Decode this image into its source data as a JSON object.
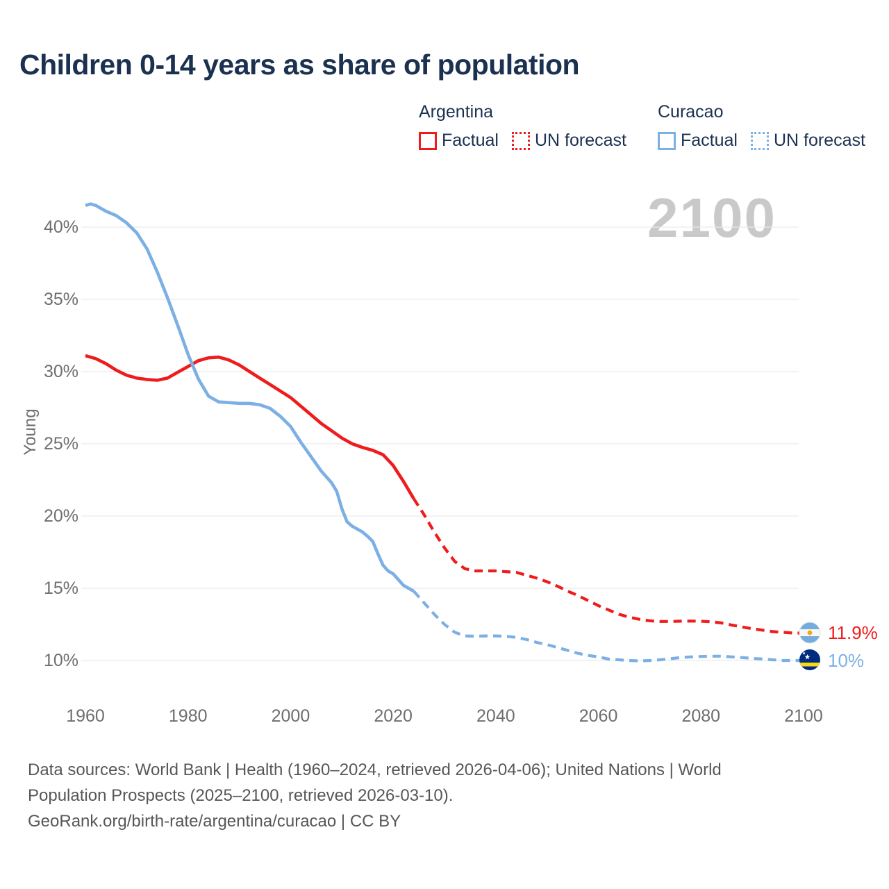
{
  "title": "Children 0-14 years as share of population",
  "watermark": "2100",
  "colors": {
    "argentina_line": "#ee1c1c",
    "curacao_line": "#7cb0e4",
    "heading_navy": "#1b3150",
    "axis_gray": "#6e6e6e",
    "gridline": "#e9e9e9",
    "watermark_gray": "#c9c9c9",
    "footer_gray": "#575757"
  },
  "legend": {
    "groups": [
      {
        "name": "Argentina",
        "items": [
          {
            "label": "Factual",
            "style": "solid",
            "color": "#ee1c1c"
          },
          {
            "label": "UN forecast",
            "style": "dotted",
            "color": "#ee1c1c"
          }
        ]
      },
      {
        "name": "Curacao",
        "items": [
          {
            "label": "Factual",
            "style": "solid",
            "color": "#7cb0e4"
          },
          {
            "label": "UN forecast",
            "style": "dotted",
            "color": "#7cb0e4"
          }
        ]
      }
    ]
  },
  "end_labels": [
    {
      "series": "Argentina",
      "value": "11.9%",
      "color": "#ee1c1c",
      "flag": "argentina-flag"
    },
    {
      "series": "Curacao",
      "value": "10%",
      "color": "#7cb0e4",
      "flag": "curacao-flag"
    }
  ],
  "footer": {
    "lines": [
      "Data sources: World Bank | Health (1960–2024, retrieved 2026-04-06); United Nations | World",
      "Population Prospects (2025–2100, retrieved 2026-03-10).",
      "GeoRank.org/birth-rate/argentina/curacao | CC BY"
    ]
  },
  "chart_data": {
    "type": "line",
    "title": "Children 0-14 years as share of population",
    "xlabel": "",
    "ylabel": "Young",
    "x_axis": {
      "tick_values": [
        1960,
        1980,
        2000,
        2020,
        2040,
        2060,
        2080,
        2100
      ],
      "tick_labels": [
        "1960",
        "1980",
        "2000",
        "2020",
        "2040",
        "2060",
        "2080",
        "2100"
      ],
      "range": [
        1960,
        2100
      ]
    },
    "y_axis": {
      "title": "Young",
      "tick_values": [
        40,
        35,
        30,
        25,
        20,
        15,
        10
      ],
      "tick_labels": [
        "40%",
        "35%",
        "30%",
        "25%",
        "20%",
        "15%",
        "10%"
      ],
      "range_pct": [
        10,
        40
      ],
      "grid": true
    },
    "legend_position": "top-right",
    "series": [
      {
        "name": "Argentina Factual",
        "country": "Argentina",
        "kind": "factual",
        "style": "solid",
        "color": "#ee1c1c",
        "points": [
          [
            1960,
            31.1
          ],
          [
            1962,
            30.9
          ],
          [
            1964,
            30.55
          ],
          [
            1966,
            30.1
          ],
          [
            1968,
            29.75
          ],
          [
            1970,
            29.55
          ],
          [
            1972,
            29.45
          ],
          [
            1974,
            29.4
          ],
          [
            1976,
            29.55
          ],
          [
            1978,
            29.95
          ],
          [
            1980,
            30.35
          ],
          [
            1982,
            30.75
          ],
          [
            1984,
            30.95
          ],
          [
            1986,
            31.0
          ],
          [
            1988,
            30.8
          ],
          [
            1990,
            30.45
          ],
          [
            1992,
            30.0
          ],
          [
            1994,
            29.55
          ],
          [
            1996,
            29.1
          ],
          [
            1998,
            28.65
          ],
          [
            2000,
            28.2
          ],
          [
            2002,
            27.6
          ],
          [
            2004,
            27.0
          ],
          [
            2006,
            26.4
          ],
          [
            2008,
            25.9
          ],
          [
            2010,
            25.4
          ],
          [
            2012,
            25.0
          ],
          [
            2014,
            24.75
          ],
          [
            2016,
            24.55
          ],
          [
            2018,
            24.25
          ],
          [
            2020,
            23.5
          ],
          [
            2022,
            22.4
          ],
          [
            2024,
            21.2
          ]
        ]
      },
      {
        "name": "Argentina UN forecast",
        "country": "Argentina",
        "kind": "forecast",
        "style": "dashed",
        "color": "#ee1c1c",
        "points": [
          [
            2024,
            21.2
          ],
          [
            2026,
            20.1
          ],
          [
            2028,
            18.9
          ],
          [
            2030,
            17.8
          ],
          [
            2032,
            16.85
          ],
          [
            2034,
            16.35
          ],
          [
            2036,
            16.2
          ],
          [
            2038,
            16.2
          ],
          [
            2040,
            16.2
          ],
          [
            2042,
            16.15
          ],
          [
            2044,
            16.1
          ],
          [
            2046,
            15.9
          ],
          [
            2048,
            15.7
          ],
          [
            2050,
            15.45
          ],
          [
            2052,
            15.15
          ],
          [
            2054,
            14.8
          ],
          [
            2056,
            14.5
          ],
          [
            2058,
            14.15
          ],
          [
            2060,
            13.8
          ],
          [
            2062,
            13.5
          ],
          [
            2064,
            13.2
          ],
          [
            2066,
            13.0
          ],
          [
            2068,
            12.85
          ],
          [
            2070,
            12.75
          ],
          [
            2072,
            12.7
          ],
          [
            2074,
            12.7
          ],
          [
            2076,
            12.72
          ],
          [
            2078,
            12.73
          ],
          [
            2080,
            12.72
          ],
          [
            2082,
            12.68
          ],
          [
            2084,
            12.6
          ],
          [
            2086,
            12.45
          ],
          [
            2088,
            12.32
          ],
          [
            2090,
            12.2
          ],
          [
            2092,
            12.1
          ],
          [
            2094,
            12.0
          ],
          [
            2096,
            11.95
          ],
          [
            2098,
            11.9
          ],
          [
            2100,
            11.9
          ]
        ]
      },
      {
        "name": "Curacao Factual",
        "country": "Curacao",
        "kind": "factual",
        "style": "solid",
        "color": "#7cb0e4",
        "points": [
          [
            1960,
            41.5
          ],
          [
            1961,
            41.6
          ],
          [
            1962,
            41.5
          ],
          [
            1964,
            41.1
          ],
          [
            1966,
            40.8
          ],
          [
            1968,
            40.3
          ],
          [
            1970,
            39.6
          ],
          [
            1972,
            38.5
          ],
          [
            1974,
            36.9
          ],
          [
            1976,
            35.1
          ],
          [
            1978,
            33.2
          ],
          [
            1980,
            31.2
          ],
          [
            1982,
            29.5
          ],
          [
            1984,
            28.3
          ],
          [
            1986,
            27.9
          ],
          [
            1988,
            27.85
          ],
          [
            1990,
            27.8
          ],
          [
            1992,
            27.8
          ],
          [
            1994,
            27.7
          ],
          [
            1996,
            27.45
          ],
          [
            1998,
            26.9
          ],
          [
            2000,
            26.2
          ],
          [
            2002,
            25.1
          ],
          [
            2004,
            24.1
          ],
          [
            2006,
            23.1
          ],
          [
            2008,
            22.3
          ],
          [
            2009,
            21.7
          ],
          [
            2010,
            20.5
          ],
          [
            2011,
            19.6
          ],
          [
            2012,
            19.3
          ],
          [
            2013,
            19.1
          ],
          [
            2014,
            18.9
          ],
          [
            2015,
            18.6
          ],
          [
            2016,
            18.25
          ],
          [
            2017,
            17.4
          ],
          [
            2018,
            16.6
          ],
          [
            2019,
            16.2
          ],
          [
            2020,
            16.0
          ],
          [
            2021,
            15.6
          ],
          [
            2022,
            15.2
          ],
          [
            2024,
            14.8
          ]
        ]
      },
      {
        "name": "Curacao UN forecast",
        "country": "Curacao",
        "kind": "forecast",
        "style": "dashed",
        "color": "#7cb0e4",
        "points": [
          [
            2024,
            14.8
          ],
          [
            2026,
            14.0
          ],
          [
            2028,
            13.2
          ],
          [
            2030,
            12.5
          ],
          [
            2032,
            11.95
          ],
          [
            2034,
            11.7
          ],
          [
            2036,
            11.68
          ],
          [
            2038,
            11.7
          ],
          [
            2040,
            11.7
          ],
          [
            2042,
            11.68
          ],
          [
            2044,
            11.6
          ],
          [
            2046,
            11.45
          ],
          [
            2048,
            11.25
          ],
          [
            2050,
            11.1
          ],
          [
            2052,
            10.9
          ],
          [
            2054,
            10.7
          ],
          [
            2056,
            10.5
          ],
          [
            2058,
            10.35
          ],
          [
            2060,
            10.25
          ],
          [
            2062,
            10.1
          ],
          [
            2064,
            10.05
          ],
          [
            2066,
            10.0
          ],
          [
            2068,
            9.97
          ],
          [
            2070,
            10.0
          ],
          [
            2072,
            10.05
          ],
          [
            2074,
            10.12
          ],
          [
            2076,
            10.2
          ],
          [
            2078,
            10.25
          ],
          [
            2080,
            10.28
          ],
          [
            2082,
            10.3
          ],
          [
            2084,
            10.3
          ],
          [
            2086,
            10.25
          ],
          [
            2088,
            10.2
          ],
          [
            2090,
            10.15
          ],
          [
            2092,
            10.1
          ],
          [
            2094,
            10.05
          ],
          [
            2096,
            10.0
          ],
          [
            2098,
            10.0
          ],
          [
            2100,
            10.0
          ]
        ]
      }
    ],
    "end_annotations": [
      {
        "country": "Argentina",
        "year": 2100,
        "value_pct": 11.9,
        "label": "11.9%"
      },
      {
        "country": "Curacao",
        "year": 2100,
        "value_pct": 10.0,
        "label": "10%"
      }
    ]
  }
}
